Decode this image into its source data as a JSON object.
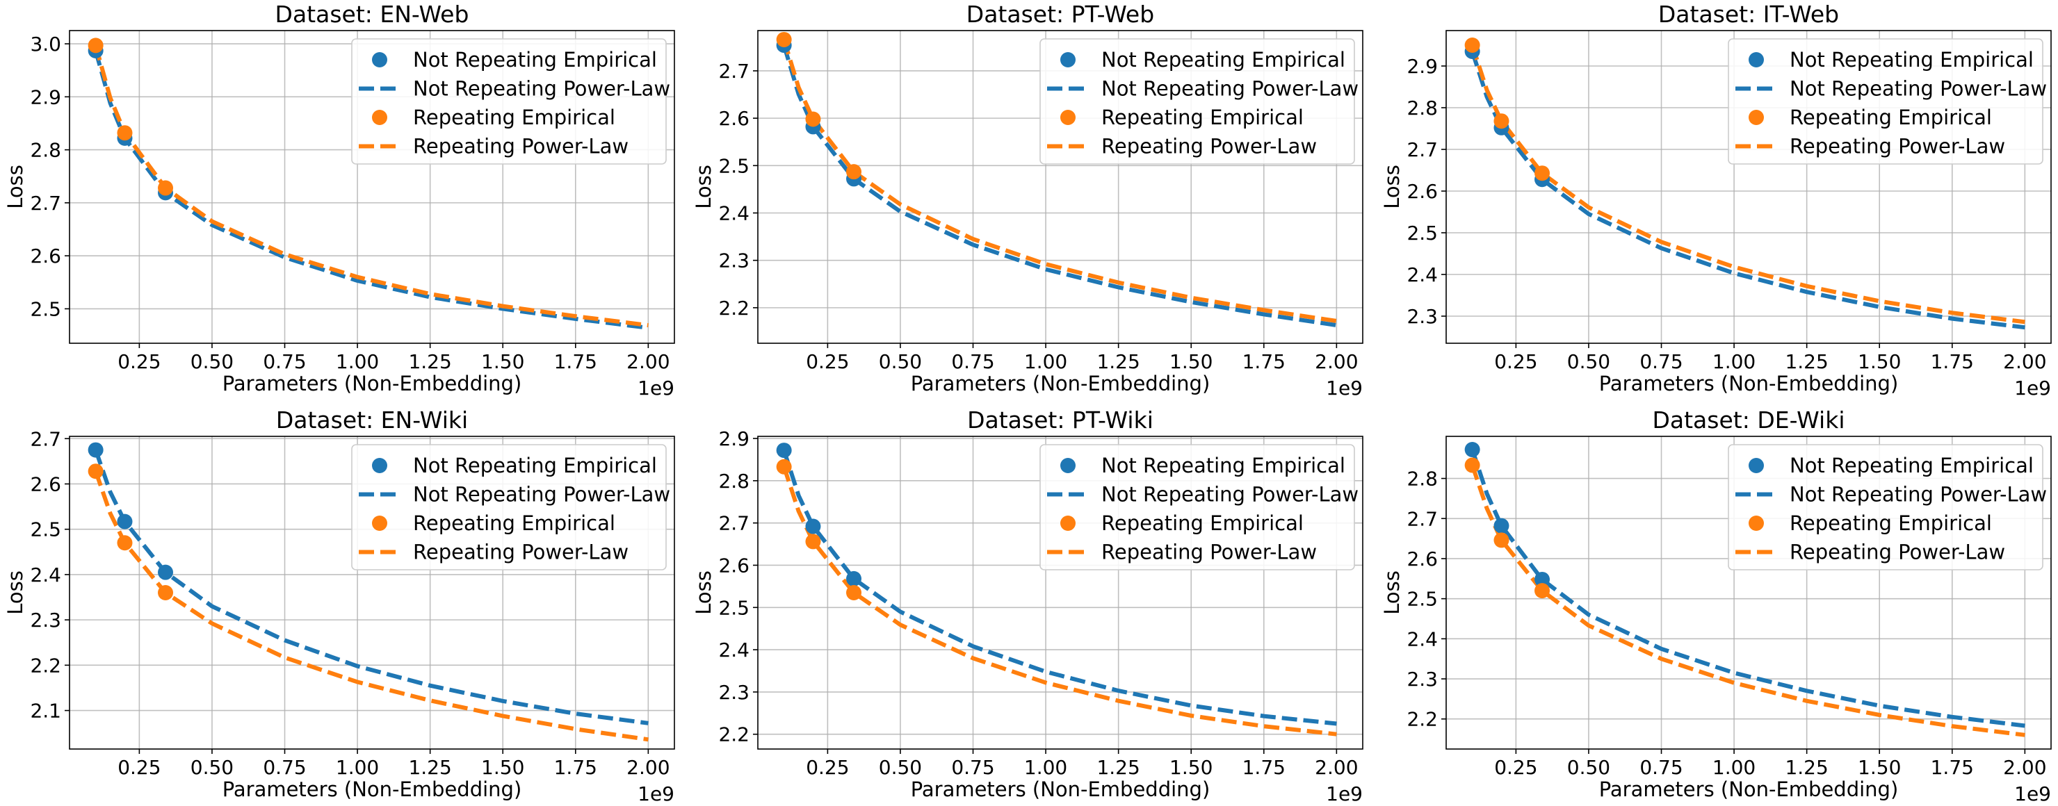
{
  "chart_data": [
    {
      "type": "line",
      "title": "Dataset: EN-Web",
      "xlabel": "Parameters (Non-Embedding)",
      "ylabel": "Loss",
      "x_offset_label": "1e9",
      "xlim": [
        0.01,
        2.09
      ],
      "ylim": [
        2.435,
        3.025
      ],
      "xticks": [
        0.25,
        0.5,
        0.75,
        1.0,
        1.25,
        1.5,
        1.75,
        2.0
      ],
      "xtick_labels": [
        "0.25",
        "0.50",
        "0.75",
        "1.00",
        "1.25",
        "1.50",
        "1.75",
        "2.00"
      ],
      "yticks": [
        2.5,
        2.6,
        2.7,
        2.8,
        2.9,
        3.0
      ],
      "ytick_labels": [
        "2.5",
        "2.6",
        "2.7",
        "2.8",
        "2.9",
        "3.0"
      ],
      "grid": true,
      "legend_position": "top-right",
      "legend": [
        "Not Repeating Empirical",
        "Not Repeating Power-Law",
        "Repeating Empirical",
        "Repeating Power-Law"
      ],
      "series": [
        {
          "name": "Not Repeating Empirical",
          "kind": "scatter",
          "color": "#1f77b4",
          "x": [
            0.1,
            0.2,
            0.34
          ],
          "y": [
            2.987,
            2.822,
            2.719
          ]
        },
        {
          "name": "Not Repeating Power-Law",
          "kind": "line",
          "color": "#1f77b4",
          "x": [
            0.1,
            0.15,
            0.2,
            0.34,
            0.5,
            0.75,
            1.0,
            1.25,
            1.5,
            1.75,
            2.0
          ],
          "y": [
            2.987,
            2.888,
            2.822,
            2.719,
            2.658,
            2.597,
            2.553,
            2.522,
            2.5,
            2.481,
            2.464
          ]
        },
        {
          "name": "Repeating Empirical",
          "kind": "scatter",
          "color": "#ff7f0e",
          "x": [
            0.1,
            0.2,
            0.34
          ],
          "y": [
            2.997,
            2.832,
            2.728
          ]
        },
        {
          "name": "Repeating Power-Law",
          "kind": "line",
          "color": "#ff7f0e",
          "x": [
            0.1,
            0.15,
            0.2,
            0.34,
            0.5,
            0.75,
            1.0,
            1.25,
            1.5,
            1.75,
            2.0
          ],
          "y": [
            2.997,
            2.898,
            2.832,
            2.728,
            2.665,
            2.603,
            2.56,
            2.528,
            2.505,
            2.486,
            2.469
          ]
        }
      ]
    },
    {
      "type": "line",
      "title": "Dataset: PT-Web",
      "xlabel": "Parameters (Non-Embedding)",
      "ylabel": "Loss",
      "x_offset_label": "1e9",
      "xlim": [
        0.01,
        2.09
      ],
      "ylim": [
        2.125,
        2.785
      ],
      "xticks": [
        0.25,
        0.5,
        0.75,
        1.0,
        1.25,
        1.5,
        1.75,
        2.0
      ],
      "xtick_labels": [
        "0.25",
        "0.50",
        "0.75",
        "1.00",
        "1.25",
        "1.50",
        "1.75",
        "2.00"
      ],
      "yticks": [
        2.2,
        2.3,
        2.4,
        2.5,
        2.6,
        2.7
      ],
      "ytick_labels": [
        "2.2",
        "2.3",
        "2.4",
        "2.5",
        "2.6",
        "2.7"
      ],
      "grid": true,
      "legend_position": "top-right",
      "legend": [
        "Not Repeating Empirical",
        "Not Repeating Power-Law",
        "Repeating Empirical",
        "Repeating Power-Law"
      ],
      "series": [
        {
          "name": "Not Repeating Empirical",
          "kind": "scatter",
          "color": "#1f77b4",
          "x": [
            0.1,
            0.2,
            0.34
          ],
          "y": [
            2.754,
            2.582,
            2.472
          ]
        },
        {
          "name": "Not Repeating Power-Law",
          "kind": "line",
          "color": "#1f77b4",
          "x": [
            0.1,
            0.15,
            0.2,
            0.34,
            0.5,
            0.75,
            1.0,
            1.25,
            1.5,
            1.75,
            2.0
          ],
          "y": [
            2.754,
            2.651,
            2.582,
            2.472,
            2.403,
            2.333,
            2.281,
            2.243,
            2.212,
            2.186,
            2.163
          ]
        },
        {
          "name": "Repeating Empirical",
          "kind": "scatter",
          "color": "#ff7f0e",
          "x": [
            0.1,
            0.2,
            0.34
          ],
          "y": [
            2.766,
            2.598,
            2.487
          ]
        },
        {
          "name": "Repeating Power-Law",
          "kind": "line",
          "color": "#ff7f0e",
          "x": [
            0.1,
            0.15,
            0.2,
            0.34,
            0.5,
            0.75,
            1.0,
            1.25,
            1.5,
            1.75,
            2.0
          ],
          "y": [
            2.766,
            2.665,
            2.598,
            2.487,
            2.418,
            2.345,
            2.292,
            2.253,
            2.221,
            2.195,
            2.172
          ]
        }
      ]
    },
    {
      "type": "line",
      "title": "Dataset: IT-Web",
      "xlabel": "Parameters (Non-Embedding)",
      "ylabel": "Loss",
      "x_offset_label": "1e9",
      "xlim": [
        0.01,
        2.09
      ],
      "ylim": [
        2.235,
        2.985
      ],
      "xticks": [
        0.25,
        0.5,
        0.75,
        1.0,
        1.25,
        1.5,
        1.75,
        2.0
      ],
      "xtick_labels": [
        "0.25",
        "0.50",
        "0.75",
        "1.00",
        "1.25",
        "1.50",
        "1.75",
        "2.00"
      ],
      "yticks": [
        2.3,
        2.4,
        2.5,
        2.6,
        2.7,
        2.8,
        2.9
      ],
      "ytick_labels": [
        "2.3",
        "2.4",
        "2.5",
        "2.6",
        "2.7",
        "2.8",
        "2.9"
      ],
      "grid": true,
      "legend_position": "top-right",
      "legend": [
        "Not Repeating Empirical",
        "Not Repeating Power-Law",
        "Repeating Empirical",
        "Repeating Power-Law"
      ],
      "series": [
        {
          "name": "Not Repeating Empirical",
          "kind": "scatter",
          "color": "#1f77b4",
          "x": [
            0.1,
            0.2,
            0.34
          ],
          "y": [
            2.935,
            2.752,
            2.628
          ]
        },
        {
          "name": "Not Repeating Power-Law",
          "kind": "line",
          "color": "#1f77b4",
          "x": [
            0.1,
            0.15,
            0.2,
            0.34,
            0.5,
            0.75,
            1.0,
            1.25,
            1.5,
            1.75,
            2.0
          ],
          "y": [
            2.935,
            2.826,
            2.752,
            2.628,
            2.545,
            2.463,
            2.403,
            2.358,
            2.322,
            2.294,
            2.273
          ]
        },
        {
          "name": "Repeating Empirical",
          "kind": "scatter",
          "color": "#ff7f0e",
          "x": [
            0.1,
            0.2,
            0.34
          ],
          "y": [
            2.95,
            2.768,
            2.643
          ]
        },
        {
          "name": "Repeating Power-Law",
          "kind": "line",
          "color": "#ff7f0e",
          "x": [
            0.1,
            0.15,
            0.2,
            0.34,
            0.5,
            0.75,
            1.0,
            1.25,
            1.5,
            1.75,
            2.0
          ],
          "y": [
            2.95,
            2.842,
            2.768,
            2.643,
            2.561,
            2.478,
            2.418,
            2.372,
            2.336,
            2.308,
            2.286
          ]
        }
      ]
    },
    {
      "type": "line",
      "title": "Dataset: EN-Wiki",
      "xlabel": "Parameters (Non-Embedding)",
      "ylabel": "Loss",
      "x_offset_label": "1e9",
      "xlim": [
        0.01,
        2.09
      ],
      "ylim": [
        2.015,
        2.705
      ],
      "xticks": [
        0.25,
        0.5,
        0.75,
        1.0,
        1.25,
        1.5,
        1.75,
        2.0
      ],
      "xtick_labels": [
        "0.25",
        "0.50",
        "0.75",
        "1.00",
        "1.25",
        "1.50",
        "1.75",
        "2.00"
      ],
      "yticks": [
        2.1,
        2.2,
        2.3,
        2.4,
        2.5,
        2.6,
        2.7
      ],
      "ytick_labels": [
        "2.1",
        "2.2",
        "2.3",
        "2.4",
        "2.5",
        "2.6",
        "2.7"
      ],
      "grid": true,
      "legend_position": "top-right",
      "legend": [
        "Not Repeating Empirical",
        "Not Repeating Power-Law",
        "Repeating Empirical",
        "Repeating Power-Law"
      ],
      "series": [
        {
          "name": "Not Repeating Empirical",
          "kind": "scatter",
          "color": "#1f77b4",
          "x": [
            0.1,
            0.2,
            0.34
          ],
          "y": [
            2.675,
            2.517,
            2.405
          ]
        },
        {
          "name": "Not Repeating Power-Law",
          "kind": "line",
          "color": "#1f77b4",
          "x": [
            0.1,
            0.15,
            0.2,
            0.34,
            0.5,
            0.75,
            1.0,
            1.25,
            1.5,
            1.75,
            2.0
          ],
          "y": [
            2.675,
            2.582,
            2.517,
            2.405,
            2.33,
            2.255,
            2.198,
            2.155,
            2.121,
            2.093,
            2.072
          ]
        },
        {
          "name": "Repeating Empirical",
          "kind": "scatter",
          "color": "#ff7f0e",
          "x": [
            0.1,
            0.2,
            0.34
          ],
          "y": [
            2.628,
            2.47,
            2.36
          ]
        },
        {
          "name": "Repeating Power-Law",
          "kind": "line",
          "color": "#ff7f0e",
          "x": [
            0.1,
            0.15,
            0.2,
            0.34,
            0.5,
            0.75,
            1.0,
            1.25,
            1.5,
            1.75,
            2.0
          ],
          "y": [
            2.628,
            2.535,
            2.47,
            2.36,
            2.292,
            2.217,
            2.163,
            2.122,
            2.088,
            2.059,
            2.036
          ]
        }
      ]
    },
    {
      "type": "line",
      "title": "Dataset: PT-Wiki",
      "xlabel": "Parameters (Non-Embedding)",
      "ylabel": "Loss",
      "x_offset_label": "1e9",
      "xlim": [
        0.01,
        2.09
      ],
      "ylim": [
        2.165,
        2.905
      ],
      "xticks": [
        0.25,
        0.5,
        0.75,
        1.0,
        1.25,
        1.5,
        1.75,
        2.0
      ],
      "xtick_labels": [
        "0.25",
        "0.50",
        "0.75",
        "1.00",
        "1.25",
        "1.50",
        "1.75",
        "2.00"
      ],
      "yticks": [
        2.2,
        2.3,
        2.4,
        2.5,
        2.6,
        2.7,
        2.8,
        2.9
      ],
      "ytick_labels": [
        "2.2",
        "2.3",
        "2.4",
        "2.5",
        "2.6",
        "2.7",
        "2.8",
        "2.9"
      ],
      "grid": true,
      "legend_position": "top-right",
      "legend": [
        "Not Repeating Empirical",
        "Not Repeating Power-Law",
        "Repeating Empirical",
        "Repeating Power-Law"
      ],
      "series": [
        {
          "name": "Not Repeating Empirical",
          "kind": "scatter",
          "color": "#1f77b4",
          "x": [
            0.1,
            0.2,
            0.34
          ],
          "y": [
            2.872,
            2.692,
            2.568
          ]
        },
        {
          "name": "Not Repeating Power-Law",
          "kind": "line",
          "color": "#1f77b4",
          "x": [
            0.1,
            0.15,
            0.2,
            0.34,
            0.5,
            0.75,
            1.0,
            1.25,
            1.5,
            1.75,
            2.0
          ],
          "y": [
            2.872,
            2.765,
            2.692,
            2.568,
            2.49,
            2.408,
            2.348,
            2.303,
            2.268,
            2.243,
            2.225
          ]
        },
        {
          "name": "Repeating Empirical",
          "kind": "scatter",
          "color": "#ff7f0e",
          "x": [
            0.1,
            0.2,
            0.34
          ],
          "y": [
            2.833,
            2.656,
            2.535
          ]
        },
        {
          "name": "Repeating Power-Law",
          "kind": "line",
          "color": "#ff7f0e",
          "x": [
            0.1,
            0.15,
            0.2,
            0.34,
            0.5,
            0.75,
            1.0,
            1.25,
            1.5,
            1.75,
            2.0
          ],
          "y": [
            2.833,
            2.728,
            2.656,
            2.535,
            2.459,
            2.38,
            2.322,
            2.279,
            2.244,
            2.219,
            2.2
          ]
        }
      ]
    },
    {
      "type": "line",
      "title": "Dataset: DE-Wiki",
      "xlabel": "Parameters (Non-Embedding)",
      "ylabel": "Loss",
      "x_offset_label": "1e9",
      "xlim": [
        0.01,
        2.09
      ],
      "ylim": [
        2.125,
        2.905
      ],
      "xticks": [
        0.25,
        0.5,
        0.75,
        1.0,
        1.25,
        1.5,
        1.75,
        2.0
      ],
      "xtick_labels": [
        "0.25",
        "0.50",
        "0.75",
        "1.00",
        "1.25",
        "1.50",
        "1.75",
        "2.00"
      ],
      "yticks": [
        2.2,
        2.3,
        2.4,
        2.5,
        2.6,
        2.7,
        2.8
      ],
      "ytick_labels": [
        "2.2",
        "2.3",
        "2.4",
        "2.5",
        "2.6",
        "2.7",
        "2.8"
      ],
      "grid": true,
      "legend_position": "top-right",
      "legend": [
        "Not Repeating Empirical",
        "Not Repeating Power-Law",
        "Repeating Empirical",
        "Repeating Power-Law"
      ],
      "series": [
        {
          "name": "Not Repeating Empirical",
          "kind": "scatter",
          "color": "#1f77b4",
          "x": [
            0.1,
            0.2,
            0.34
          ],
          "y": [
            2.872,
            2.682,
            2.548
          ]
        },
        {
          "name": "Not Repeating Power-Law",
          "kind": "line",
          "color": "#1f77b4",
          "x": [
            0.1,
            0.15,
            0.2,
            0.34,
            0.5,
            0.75,
            1.0,
            1.25,
            1.5,
            1.75,
            2.0
          ],
          "y": [
            2.872,
            2.762,
            2.682,
            2.548,
            2.46,
            2.375,
            2.315,
            2.27,
            2.233,
            2.205,
            2.183
          ]
        },
        {
          "name": "Repeating Empirical",
          "kind": "scatter",
          "color": "#ff7f0e",
          "x": [
            0.1,
            0.2,
            0.34
          ],
          "y": [
            2.833,
            2.646,
            2.52
          ]
        },
        {
          "name": "Repeating Power-Law",
          "kind": "line",
          "color": "#ff7f0e",
          "x": [
            0.1,
            0.15,
            0.2,
            0.34,
            0.5,
            0.75,
            1.0,
            1.25,
            1.5,
            1.75,
            2.0
          ],
          "y": [
            2.833,
            2.725,
            2.646,
            2.52,
            2.433,
            2.35,
            2.29,
            2.245,
            2.21,
            2.182,
            2.16
          ]
        }
      ]
    }
  ]
}
